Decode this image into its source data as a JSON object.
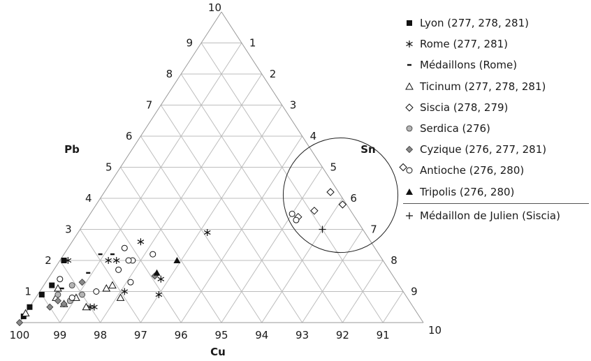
{
  "chart_data": {
    "type": "ternary",
    "axes": {
      "bottom": {
        "label": "Cu",
        "ticks": [
          "100",
          "99",
          "98",
          "97",
          "96",
          "95",
          "94",
          "93",
          "92",
          "91"
        ]
      },
      "left": {
        "label": "Pb",
        "ticks": [
          "1",
          "2",
          "3",
          "4",
          "5",
          "6",
          "7",
          "8",
          "9",
          "10"
        ]
      },
      "right": {
        "label": "Sn",
        "ticks": [
          "1",
          "2",
          "3",
          "4",
          "5",
          "6",
          "7",
          "8",
          "9",
          "10"
        ]
      }
    },
    "range": {
      "Cu": [
        90,
        100
      ],
      "Pb": [
        0,
        10
      ],
      "Sn": [
        0,
        10
      ]
    },
    "grid": true,
    "legend_position": "right",
    "series": [
      {
        "name": "Lyon (277, 278, 281)",
        "marker": "filled-square",
        "points": [
          {
            "pb": 0.2,
            "sn": 0.0
          },
          {
            "pb": 0.5,
            "sn": 0.0
          },
          {
            "pb": 0.9,
            "sn": 0.1
          },
          {
            "pb": 1.2,
            "sn": 0.2
          },
          {
            "pb": 2.0,
            "sn": 0.1
          }
        ]
      },
      {
        "name": "Rome (277, 281)",
        "marker": "asterisk",
        "points": [
          {
            "pb": 2.0,
            "sn": 0.2
          },
          {
            "pb": 2.0,
            "sn": 1.2
          },
          {
            "pb": 2.0,
            "sn": 1.4
          },
          {
            "pb": 1.0,
            "sn": 2.1
          },
          {
            "pb": 0.5,
            "sn": 1.5
          },
          {
            "pb": 1.4,
            "sn": 2.8
          },
          {
            "pb": 0.9,
            "sn": 3.0
          },
          {
            "pb": 2.9,
            "sn": 3.2
          },
          {
            "pb": 0.5,
            "sn": 1.6
          },
          {
            "pb": 2.6,
            "sn": 1.7
          }
        ]
      },
      {
        "name": "Médaillons (Rome)",
        "marker": "dash",
        "points": [
          {
            "pb": 2.2,
            "sn": 0.9
          },
          {
            "pb": 2.2,
            "sn": 1.2
          },
          {
            "pb": 1.6,
            "sn": 0.9
          },
          {
            "pb": 1.1,
            "sn": 0.5
          }
        ]
      },
      {
        "name": "Ticinum (277, 278, 281)",
        "marker": "open-triangle",
        "points": [
          {
            "pb": 0.3,
            "sn": 0.0
          },
          {
            "pb": 0.8,
            "sn": 0.5
          },
          {
            "pb": 1.1,
            "sn": 0.4
          },
          {
            "pb": 0.6,
            "sn": 0.8
          },
          {
            "pb": 0.8,
            "sn": 1.0
          },
          {
            "pb": 1.1,
            "sn": 1.6
          },
          {
            "pb": 0.5,
            "sn": 1.4
          },
          {
            "pb": 0.8,
            "sn": 2.1
          },
          {
            "pb": 1.2,
            "sn": 1.7
          }
        ]
      },
      {
        "name": "Siscia (278, 279)",
        "marker": "open-diamond",
        "points": [
          {
            "pb": 5.0,
            "sn": 7.0
          },
          {
            "pb": 4.2,
            "sn": 5.6
          },
          {
            "pb": 3.8,
            "sn": 6.1
          },
          {
            "pb": 3.6,
            "sn": 5.5
          },
          {
            "pb": 3.4,
            "sn": 5.2
          }
        ]
      },
      {
        "name": "Serdica (276)",
        "marker": "filled-circle",
        "points": [
          {
            "pb": 0.9,
            "sn": 0.5
          },
          {
            "pb": 1.2,
            "sn": 0.7
          },
          {
            "pb": 0.9,
            "sn": 1.1
          },
          {
            "pb": 0.7,
            "sn": 0.9
          }
        ]
      },
      {
        "name": "Cyzique (276, 277, 281)",
        "marker": "filled-diamond",
        "points": [
          {
            "pb": 0.0,
            "sn": 0.0
          },
          {
            "pb": 0.5,
            "sn": 0.5
          },
          {
            "pb": 0.7,
            "sn": 0.6
          },
          {
            "pb": 1.3,
            "sn": 0.9
          },
          {
            "pb": 0.6,
            "sn": 0.8
          },
          {
            "pb": 1.5,
            "sn": 2.6
          }
        ]
      },
      {
        "name": "Antioche (276, 280)",
        "marker": "open-circle",
        "points": [
          {
            "pb": 2.4,
            "sn": 1.4
          },
          {
            "pb": 2.0,
            "sn": 1.8
          },
          {
            "pb": 2.0,
            "sn": 1.7
          },
          {
            "pb": 2.2,
            "sn": 2.2
          },
          {
            "pb": 1.0,
            "sn": 1.4
          },
          {
            "pb": 1.3,
            "sn": 2.1
          },
          {
            "pb": 0.8,
            "sn": 0.9
          },
          {
            "pb": 1.7,
            "sn": 1.6
          },
          {
            "pb": 3.5,
            "sn": 5.0
          },
          {
            "pb": 3.3,
            "sn": 5.2
          },
          {
            "pb": 1.4,
            "sn": 0.3
          }
        ]
      },
      {
        "name": "Tripolis (276, 280)",
        "marker": "filled-triangle",
        "points": [
          {
            "pb": 2.0,
            "sn": 2.9
          },
          {
            "pb": 1.6,
            "sn": 2.6
          }
        ]
      },
      {
        "name": "Médaillon de Julien (Siscia)",
        "marker": "plus",
        "points": [
          {
            "pb": 3.0,
            "sn": 6.0
          }
        ]
      }
    ],
    "annotations": [
      {
        "type": "ellipse",
        "center": {
          "pb": 4.1,
          "sn": 5.9
        },
        "radius_units": 1.42
      }
    ]
  }
}
